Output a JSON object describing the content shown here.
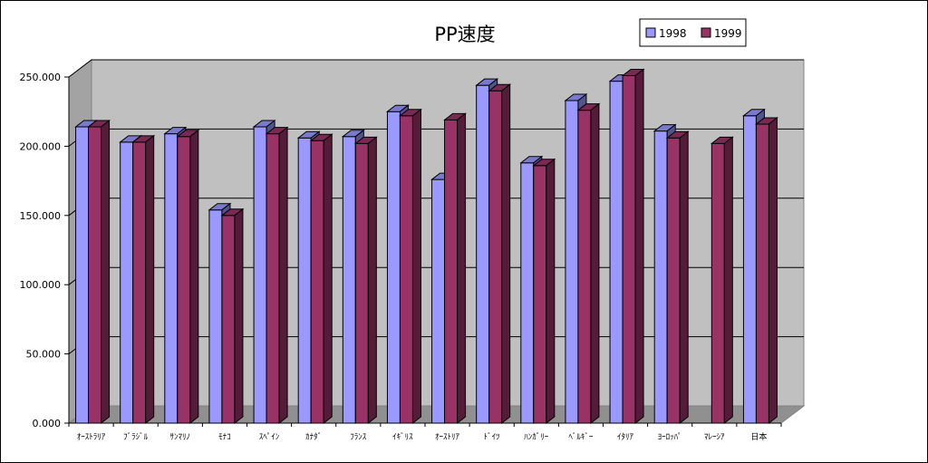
{
  "chart_data": {
    "type": "bar",
    "title": "PP速度",
    "xlabel": "",
    "ylabel": "",
    "ylim": [
      0,
      250
    ],
    "yticks": [
      "0.000",
      "50.000",
      "100.000",
      "150.000",
      "200.000",
      "250.000"
    ],
    "ytick_values": [
      0,
      50,
      100,
      150,
      200,
      250
    ],
    "grid": true,
    "legend_position": "top-right",
    "categories": [
      "ｵｰｽﾄﾗﾘｱ",
      "ﾌﾞﾗｼﾞﾙ",
      "ｻﾝﾏﾘﾉ",
      "ﾓﾅｺ",
      "ｽﾍﾟｲﾝ",
      "ｶﾅﾀﾞ",
      "ﾌﾗﾝｽ",
      "ｲｷﾞﾘｽ",
      "ｵｰｽﾄﾘｱ",
      "ﾄﾞｲﾂ",
      "ﾊﾝｶﾞﾘｰ",
      "ﾍﾞﾙｷﾞｰ",
      "ｲﾀﾘｱ",
      "ﾖｰﾛｯﾊﾟ",
      "ﾏﾚｰｼｱ",
      "日本"
    ],
    "series": [
      {
        "name": "1998",
        "color": "#9999FF",
        "values": [
          214,
          203,
          209,
          154,
          214,
          206,
          207,
          225,
          176,
          244,
          188,
          233,
          247,
          211,
          null,
          222
        ]
      },
      {
        "name": "1999",
        "color": "#993366",
        "values": [
          214,
          203,
          207,
          150,
          209,
          204,
          202,
          222,
          219,
          240,
          186,
          226,
          251,
          206,
          202,
          216
        ]
      }
    ],
    "colors": {
      "plot_background": "#C0C0C0",
      "floor": "#C0C0C0",
      "gridline": "#000000"
    }
  }
}
